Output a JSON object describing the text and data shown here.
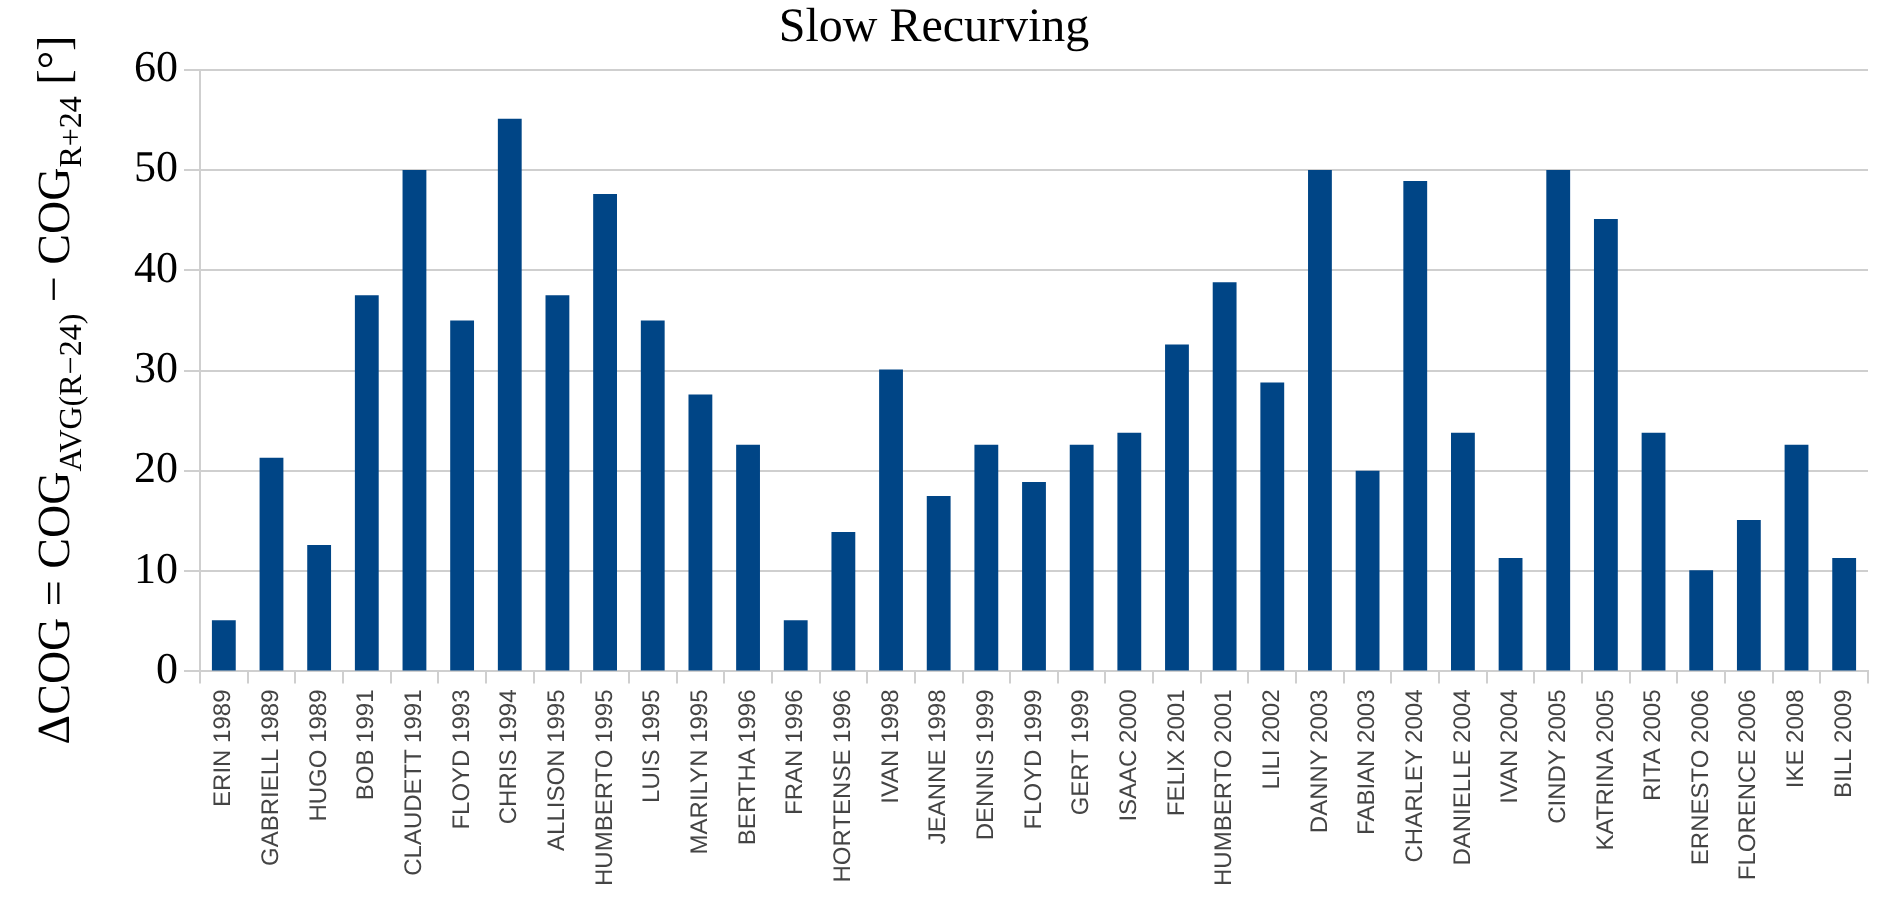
{
  "chart_data": {
    "type": "bar",
    "title": "Slow Recurving",
    "ylabel": "ΔCOG = COG$_{AVG(R−24)}$ − COG$_{R+24}$ [°]",
    "categories": [
      "ERIN 1989",
      "GABRIELL 1989",
      "HUGO 1989",
      "BOB 1991",
      "CLAUDETT 1991",
      "FLOYD 1993",
      "CHRIS 1994",
      "ALLISON 1995",
      "HUMBERTO 1995",
      "LUIS 1995",
      "MARILYN 1995",
      "BERTHA 1996",
      "FRAN 1996",
      "HORTENSE 1996",
      "IVAN 1998",
      "JEANNE 1998",
      "DENNIS 1999",
      "FLOYD 1999",
      "GERT 1999",
      "ISAAC 2000",
      "FELIX 2001",
      "HUMBERTO 2001",
      "LILI 2002",
      "DANNY 2003",
      "FABIAN 2003",
      "CHARLEY 2004",
      "DANIELLE 2004",
      "IVAN 2004",
      "CINDY 2005",
      "KATRINA 2005",
      "RITA 2005",
      "ERNESTO 2006",
      "FLORENCE 2006",
      "IKE 2008",
      "BILL 2009"
    ],
    "values": [
      5.1,
      21.3,
      12.6,
      37.5,
      50,
      35,
      55.1,
      37.5,
      47.6,
      35,
      27.6,
      22.6,
      5.1,
      13.9,
      30.1,
      17.5,
      22.6,
      18.9,
      22.6,
      23.8,
      32.6,
      38.8,
      28.8,
      50,
      20,
      48.9,
      23.8,
      11.3,
      50,
      45.1,
      23.8,
      10.1,
      15.1,
      22.6,
      11.3
    ],
    "color": "#004586",
    "ylim": [
      0,
      60
    ],
    "yticks": [
      0,
      10,
      20,
      30,
      40,
      50,
      60
    ],
    "grid": "y"
  }
}
